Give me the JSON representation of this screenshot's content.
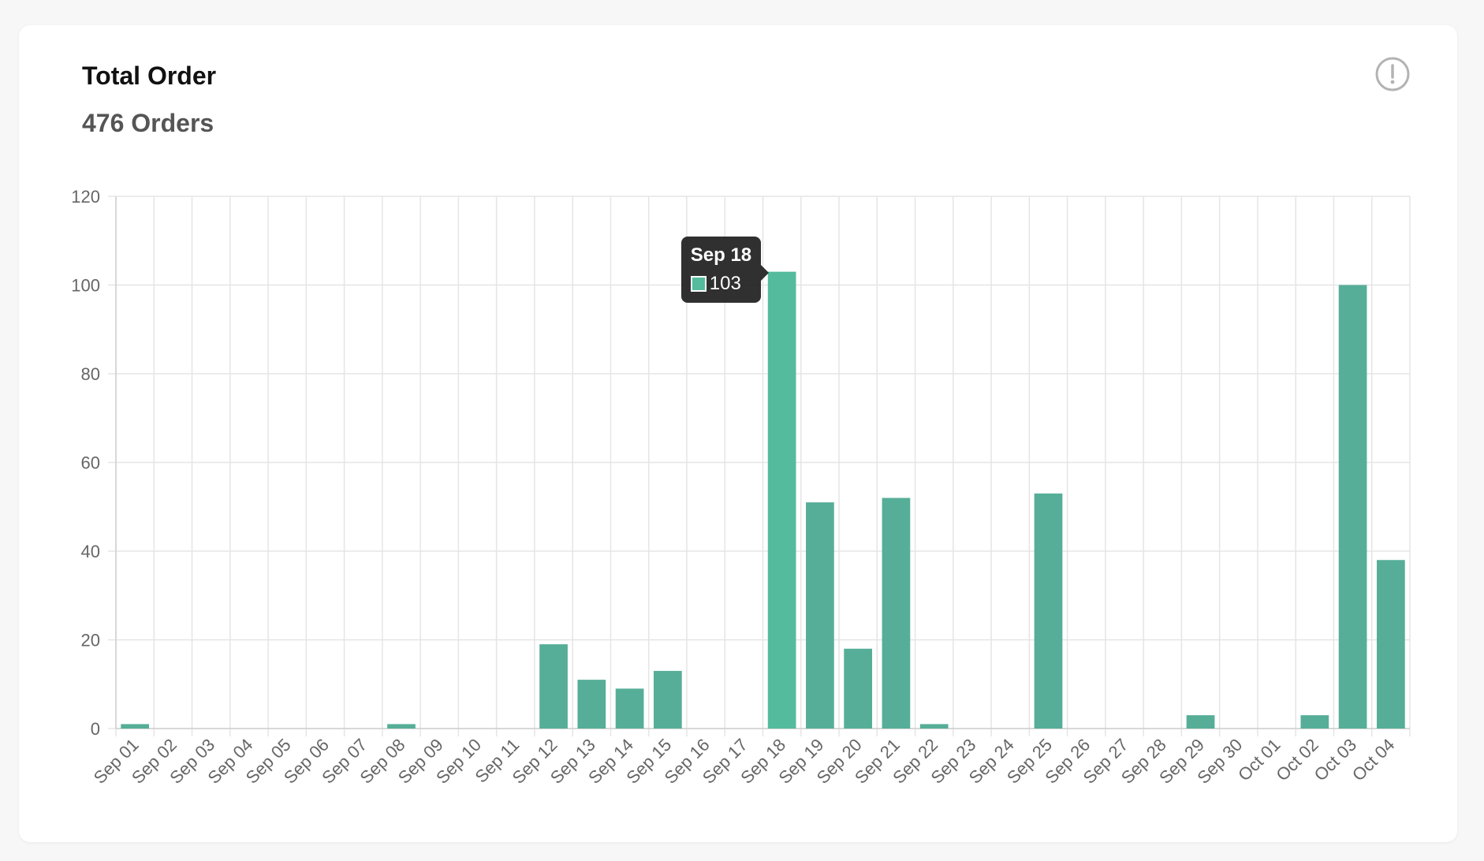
{
  "card": {
    "title": "Total Order",
    "subtitle": "476 Orders",
    "info_icon": "exclamation-circle-icon"
  },
  "colors": {
    "bar": "#56ae98",
    "bar_hover": "#54bb9d",
    "grid": "#e5e5e5",
    "axis_text": "#666666"
  },
  "tooltip": {
    "title": "Sep 18",
    "value": "103"
  },
  "chart_data": {
    "type": "bar",
    "categories": [
      "Sep 01",
      "Sep 02",
      "Sep 03",
      "Sep 04",
      "Sep 05",
      "Sep 06",
      "Sep 07",
      "Sep 08",
      "Sep 09",
      "Sep 10",
      "Sep 11",
      "Sep 12",
      "Sep 13",
      "Sep 14",
      "Sep 15",
      "Sep 16",
      "Sep 17",
      "Sep 18",
      "Sep 19",
      "Sep 20",
      "Sep 21",
      "Sep 22",
      "Sep 23",
      "Sep 24",
      "Sep 25",
      "Sep 26",
      "Sep 27",
      "Sep 28",
      "Sep 29",
      "Sep 30",
      "Oct 01",
      "Oct 02",
      "Oct 03",
      "Oct 04"
    ],
    "values": [
      1,
      0,
      0,
      0,
      0,
      0,
      0,
      1,
      0,
      0,
      0,
      19,
      11,
      9,
      13,
      0,
      0,
      103,
      51,
      18,
      52,
      1,
      0,
      0,
      53,
      0,
      0,
      0,
      3,
      0,
      0,
      3,
      100,
      38
    ],
    "ylim": [
      0,
      120
    ],
    "yticks": [
      0,
      20,
      40,
      60,
      80,
      100,
      120
    ],
    "grid": true,
    "legend": "none",
    "highlighted_category": "Sep 18"
  }
}
